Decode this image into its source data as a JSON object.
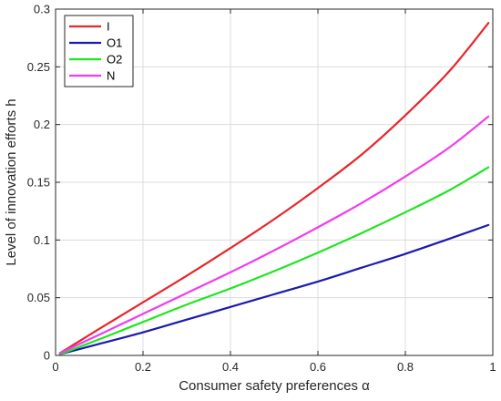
{
  "chart_data": {
    "type": "line",
    "xlabel": "Consumer safety preferences α",
    "ylabel": "Level of innovation efforts h",
    "xlim": [
      0,
      1
    ],
    "ylim": [
      0,
      0.3
    ],
    "grid": true,
    "legend_position": "top-left",
    "x_ticks": [
      0,
      0.2,
      0.4,
      0.6,
      0.8,
      1
    ],
    "x_tick_labels": [
      "0",
      "0.2",
      "0.4",
      "0.6",
      "0.8",
      "1"
    ],
    "y_ticks": [
      0,
      0.05,
      0.1,
      0.15,
      0.2,
      0.25,
      0.3
    ],
    "y_tick_labels": [
      "0",
      "0.05",
      "0.1",
      "0.15",
      "0.2",
      "0.25",
      "0.3"
    ],
    "series": [
      {
        "name": "I",
        "color": "#e8262a",
        "x": [
          0.01,
          0.1,
          0.2,
          0.3,
          0.4,
          0.5,
          0.6,
          0.7,
          0.8,
          0.9,
          0.99
        ],
        "y": [
          0.002,
          0.023,
          0.046,
          0.069,
          0.093,
          0.118,
          0.145,
          0.174,
          0.208,
          0.246,
          0.288
        ]
      },
      {
        "name": "O1",
        "color": "#1a1ab0",
        "x": [
          0.01,
          0.1,
          0.2,
          0.3,
          0.4,
          0.5,
          0.6,
          0.7,
          0.8,
          0.9,
          0.99
        ],
        "y": [
          0.001,
          0.01,
          0.02,
          0.031,
          0.042,
          0.053,
          0.064,
          0.076,
          0.088,
          0.101,
          0.113
        ]
      },
      {
        "name": "O2",
        "color": "#1ee61e",
        "x": [
          0.01,
          0.1,
          0.2,
          0.3,
          0.4,
          0.5,
          0.6,
          0.7,
          0.8,
          0.9,
          0.99
        ],
        "y": [
          0.001,
          0.014,
          0.029,
          0.044,
          0.058,
          0.073,
          0.089,
          0.106,
          0.124,
          0.143,
          0.163
        ]
      },
      {
        "name": "N",
        "color": "#f03cf0",
        "x": [
          0.01,
          0.1,
          0.2,
          0.3,
          0.4,
          0.5,
          0.6,
          0.7,
          0.8,
          0.9,
          0.99
        ],
        "y": [
          0.002,
          0.018,
          0.036,
          0.054,
          0.072,
          0.091,
          0.111,
          0.132,
          0.155,
          0.18,
          0.207
        ]
      }
    ]
  }
}
